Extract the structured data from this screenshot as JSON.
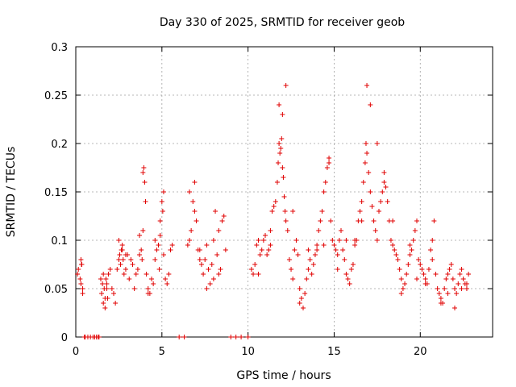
{
  "chart_data": {
    "type": "scatter",
    "title": "Day 330 of 2025, SRMTID for receiver geob",
    "xlabel": "GPS time / hours",
    "ylabel": "SRMTID / TECUs",
    "xlim": [
      0,
      24.2
    ],
    "ylim": [
      0,
      0.3
    ],
    "x_ticks": [
      0,
      5,
      10,
      15,
      20
    ],
    "y_ticks": [
      0,
      0.05,
      0.1,
      0.15,
      0.2,
      0.25,
      0.3
    ],
    "x_tick_labels": [
      "0",
      "5",
      "10",
      "15",
      "20"
    ],
    "y_tick_labels": [
      "0",
      "0.05",
      "0.1",
      "0.15",
      "0.2",
      "0.25",
      "0.3"
    ],
    "grid": true,
    "marker": "plus",
    "color": "#e00000",
    "series": [
      {
        "name": "SRMTID",
        "x": [
          0.1,
          0.15,
          0.25,
          0.3,
          0.33,
          0.4,
          0.5,
          0.55,
          0.7,
          0.85,
          1.0,
          1.1,
          1.2,
          1.3,
          1.35,
          1.45,
          1.5,
          1.55,
          1.6,
          1.65,
          1.7,
          1.75,
          1.8,
          1.85,
          1.9,
          2.0,
          2.1,
          2.2,
          2.3,
          2.4,
          2.5,
          2.55,
          2.6,
          2.65,
          2.7,
          2.75,
          2.8,
          2.9,
          3.0,
          3.1,
          3.2,
          3.3,
          3.4,
          3.5,
          3.6,
          3.7,
          3.8,
          3.85,
          3.9,
          3.95,
          4.0,
          4.05,
          4.1,
          4.2,
          4.3,
          4.4,
          4.5,
          4.6,
          4.7,
          4.8,
          4.85,
          4.9,
          5.0,
          5.05,
          5.1,
          5.2,
          5.3,
          5.4,
          5.5,
          5.6,
          6.0,
          6.3,
          6.5,
          6.6,
          6.7,
          6.8,
          6.9,
          7.0,
          7.1,
          7.2,
          7.3,
          7.4,
          7.5,
          7.6,
          7.7,
          7.8,
          7.9,
          8.0,
          8.1,
          8.2,
          8.3,
          8.4,
          8.5,
          8.6,
          8.7,
          9.0,
          9.3,
          9.6,
          10.0,
          10.2,
          10.3,
          10.4,
          10.5,
          10.6,
          10.7,
          10.8,
          10.9,
          11.0,
          11.1,
          11.2,
          11.3,
          11.4,
          11.5,
          11.6,
          11.7,
          11.75,
          11.8,
          11.85,
          11.9,
          11.95,
          12.0,
          12.05,
          12.1,
          12.15,
          12.2,
          12.3,
          12.4,
          12.5,
          12.6,
          12.7,
          12.8,
          12.9,
          13.0,
          13.1,
          13.2,
          13.3,
          13.4,
          13.5,
          13.6,
          13.7,
          13.8,
          13.9,
          14.0,
          14.1,
          14.2,
          14.3,
          14.4,
          14.5,
          14.6,
          14.7,
          14.8,
          14.9,
          15.0,
          15.1,
          15.2,
          15.3,
          15.4,
          15.5,
          15.6,
          15.7,
          15.8,
          15.9,
          16.0,
          16.1,
          16.2,
          16.3,
          16.4,
          16.5,
          16.6,
          16.7,
          16.8,
          16.85,
          16.9,
          17.0,
          17.1,
          17.2,
          17.3,
          17.4,
          17.5,
          17.6,
          17.7,
          17.8,
          17.9,
          18.0,
          18.1,
          18.2,
          18.3,
          18.4,
          18.5,
          18.6,
          18.7,
          18.8,
          18.9,
          19.0,
          19.1,
          19.2,
          19.3,
          19.4,
          19.5,
          19.6,
          19.7,
          19.8,
          19.9,
          20.0,
          20.1,
          20.2,
          20.3,
          20.4,
          20.5,
          20.6,
          20.7,
          20.8,
          20.9,
          21.0,
          21.1,
          21.2,
          21.3,
          21.4,
          21.5,
          21.6,
          21.7,
          21.8,
          21.9,
          22.0,
          22.1,
          22.2,
          22.3,
          22.4,
          22.5,
          22.6,
          22.7,
          22.8,
          0.3,
          0.35,
          0.4,
          1.6,
          1.7,
          1.8,
          2.5,
          2.7,
          2.9,
          3.7,
          3.9,
          4.2,
          4.6,
          4.9,
          5.1,
          6.6,
          6.9,
          7.2,
          7.6,
          8.0,
          8.3,
          10.6,
          11.3,
          11.8,
          12.0,
          12.2,
          12.6,
          13.0,
          13.5,
          14.0,
          14.4,
          14.7,
          15.2,
          15.7,
          16.2,
          16.6,
          16.9,
          17.1,
          17.5,
          17.9,
          18.4,
          18.9,
          19.4,
          19.8,
          20.3,
          20.7,
          21.2,
          21.6,
          22.0,
          22.4,
          22.7
        ],
        "y": [
          0.065,
          0.07,
          0.06,
          0.08,
          0.075,
          0.05,
          0.0,
          0.0,
          0.0,
          0.0,
          0.0,
          0.0,
          0.0,
          0.0,
          0.0,
          0.06,
          0.045,
          0.055,
          0.035,
          0.05,
          0.03,
          0.06,
          0.055,
          0.04,
          0.065,
          0.07,
          0.05,
          0.045,
          0.035,
          0.07,
          0.08,
          0.085,
          0.075,
          0.09,
          0.095,
          0.08,
          0.065,
          0.07,
          0.085,
          0.06,
          0.08,
          0.075,
          0.05,
          0.065,
          0.07,
          0.085,
          0.09,
          0.08,
          0.17,
          0.175,
          0.16,
          0.14,
          0.065,
          0.05,
          0.045,
          0.06,
          0.055,
          0.08,
          0.09,
          0.095,
          0.07,
          0.12,
          0.14,
          0.13,
          0.085,
          0.06,
          0.055,
          0.065,
          0.09,
          0.095,
          0.0,
          0.0,
          0.095,
          0.1,
          0.11,
          0.14,
          0.16,
          0.12,
          0.09,
          0.08,
          0.075,
          0.065,
          0.08,
          0.05,
          0.07,
          0.055,
          0.075,
          0.1,
          0.13,
          0.085,
          0.065,
          0.07,
          0.12,
          0.125,
          0.09,
          0.0,
          0.0,
          0.0,
          0.0,
          0.07,
          0.065,
          0.075,
          0.095,
          0.1,
          0.085,
          0.09,
          0.1,
          0.105,
          0.085,
          0.09,
          0.11,
          0.13,
          0.135,
          0.14,
          0.16,
          0.18,
          0.2,
          0.19,
          0.195,
          0.205,
          0.175,
          0.165,
          0.145,
          0.13,
          0.12,
          0.11,
          0.08,
          0.07,
          0.06,
          0.09,
          0.1,
          0.085,
          0.05,
          0.04,
          0.03,
          0.045,
          0.06,
          0.07,
          0.08,
          0.065,
          0.075,
          0.085,
          0.095,
          0.11,
          0.12,
          0.13,
          0.15,
          0.16,
          0.175,
          0.18,
          0.12,
          0.1,
          0.095,
          0.09,
          0.085,
          0.1,
          0.11,
          0.09,
          0.08,
          0.065,
          0.06,
          0.055,
          0.07,
          0.075,
          0.095,
          0.1,
          0.12,
          0.13,
          0.14,
          0.16,
          0.18,
          0.2,
          0.19,
          0.17,
          0.15,
          0.135,
          0.12,
          0.11,
          0.1,
          0.13,
          0.14,
          0.15,
          0.16,
          0.155,
          0.14,
          0.12,
          0.1,
          0.095,
          0.09,
          0.085,
          0.08,
          0.07,
          0.06,
          0.05,
          0.055,
          0.065,
          0.075,
          0.085,
          0.09,
          0.1,
          0.11,
          0.12,
          0.08,
          0.075,
          0.07,
          0.065,
          0.06,
          0.055,
          0.07,
          0.09,
          0.1,
          0.12,
          0.065,
          0.05,
          0.045,
          0.04,
          0.035,
          0.05,
          0.06,
          0.065,
          0.07,
          0.075,
          0.06,
          0.05,
          0.045,
          0.055,
          0.065,
          0.07,
          0.06,
          0.055,
          0.05,
          0.065,
          0.055,
          0.075,
          0.045,
          0.065,
          0.04,
          0.05,
          0.1,
          0.09,
          0.085,
          0.105,
          0.11,
          0.045,
          0.1,
          0.105,
          0.15,
          0.15,
          0.13,
          0.09,
          0.095,
          0.06,
          0.11,
          0.065,
          0.095,
          0.24,
          0.23,
          0.26,
          0.13,
          0.035,
          0.09,
          0.09,
          0.095,
          0.185,
          0.07,
          0.1,
          0.1,
          0.12,
          0.26,
          0.24,
          0.2,
          0.17,
          0.12,
          0.045,
          0.095,
          0.06,
          0.055,
          0.08,
          0.035,
          0.045,
          0.03,
          0.05,
          0.055
        ]
      }
    ]
  }
}
